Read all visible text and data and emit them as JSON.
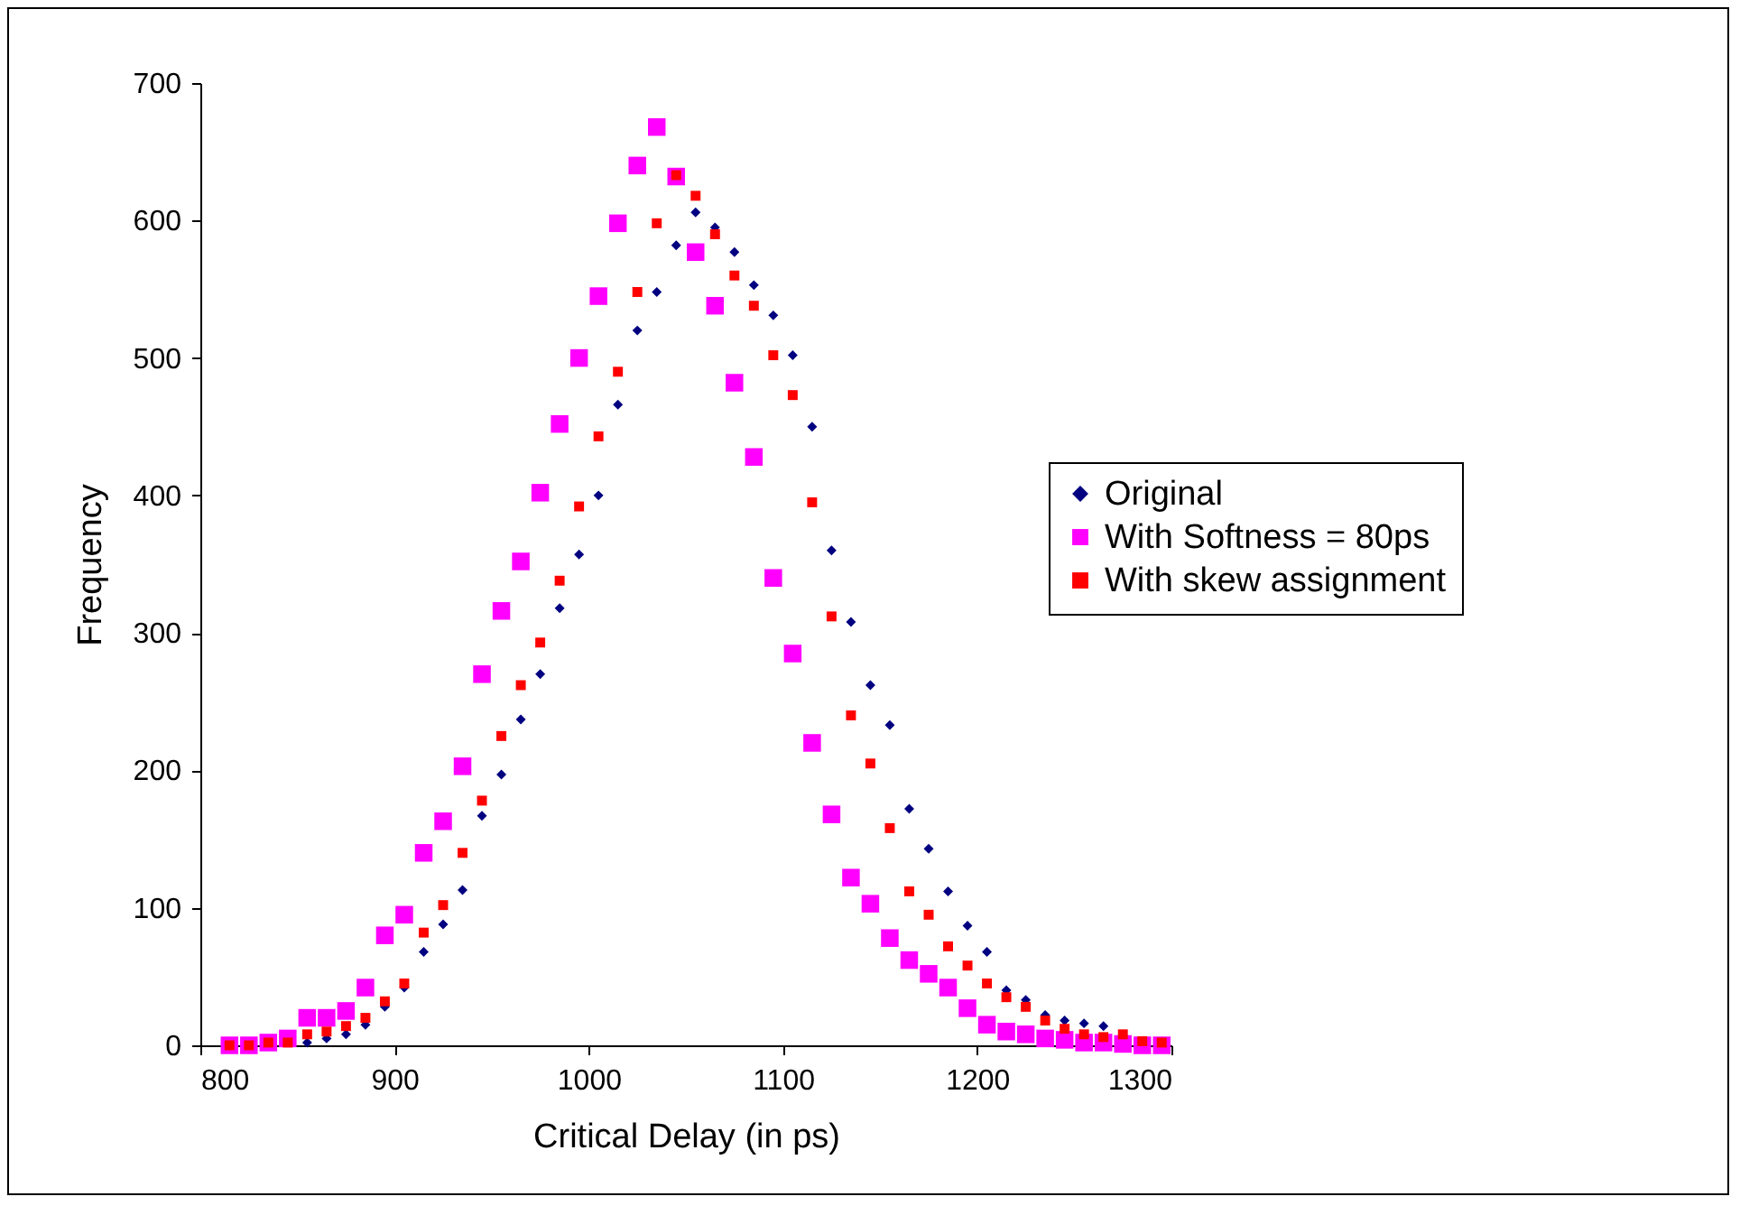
{
  "chart_data": {
    "type": "scatter",
    "xlabel": "Critical Delay (in ps)",
    "ylabel": "Frequency",
    "x": [
      815,
      825,
      835,
      845,
      855,
      865,
      875,
      885,
      895,
      905,
      915,
      925,
      935,
      945,
      955,
      965,
      975,
      985,
      995,
      1005,
      1015,
      1025,
      1035,
      1045,
      1055,
      1065,
      1075,
      1085,
      1095,
      1105,
      1115,
      1125,
      1135,
      1145,
      1155,
      1165,
      1175,
      1185,
      1195,
      1205,
      1215,
      1225,
      1235,
      1245,
      1255,
      1265,
      1275,
      1285,
      1295
    ],
    "series": [
      {
        "name": "Original",
        "color": "#000080",
        "marker": "diamond",
        "values": [
          null,
          null,
          null,
          null,
          2,
          5,
          8,
          15,
          28,
          42,
          68,
          88,
          113,
          167,
          197,
          237,
          270,
          318,
          357,
          400,
          466,
          520,
          548,
          582,
          606,
          595,
          577,
          553,
          531,
          502,
          450,
          360,
          308,
          262,
          233,
          172,
          143,
          112,
          87,
          68,
          40,
          33,
          22,
          18,
          16,
          14,
          null,
          null,
          null
        ]
      },
      {
        "name": "With Softness = 80ps",
        "color": "#ff00ff",
        "marker": "square",
        "values": [
          0,
          0,
          2,
          5,
          20,
          20,
          25,
          42,
          80,
          95,
          140,
          163,
          203,
          270,
          316,
          352,
          402,
          452,
          500,
          545,
          598,
          640,
          668,
          632,
          577,
          538,
          482,
          428,
          340,
          285,
          220,
          168,
          122,
          103,
          78,
          62,
          52,
          42,
          27,
          15,
          10,
          8,
          5,
          4,
          2,
          2,
          1,
          0,
          0
        ]
      },
      {
        "name": "With skew assignment",
        "color": "#ff0000",
        "marker": "square",
        "values": [
          0,
          0,
          2,
          2,
          8,
          10,
          14,
          20,
          32,
          45,
          82,
          102,
          140,
          178,
          225,
          262,
          293,
          338,
          392,
          443,
          490,
          548,
          598,
          633,
          618,
          590,
          560,
          538,
          502,
          473,
          395,
          312,
          240,
          205,
          158,
          112,
          95,
          72,
          58,
          45,
          35,
          28,
          18,
          12,
          8,
          6,
          8,
          3,
          2
        ]
      }
    ],
    "xlim": [
      800,
      1300
    ],
    "xticks": [
      800,
      900,
      1000,
      1100,
      1200,
      1300
    ],
    "ylim": [
      0,
      700
    ],
    "yticks": [
      0,
      100,
      200,
      300,
      400,
      500,
      600,
      700
    ],
    "legend": "right"
  }
}
